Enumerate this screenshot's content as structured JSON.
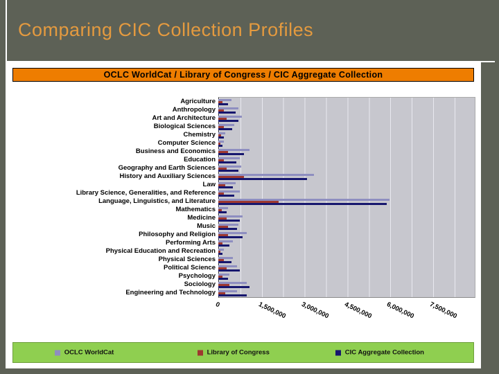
{
  "slide": {
    "title": "Comparing CIC Collection Profiles"
  },
  "chart_data": {
    "type": "bar",
    "orientation": "horizontal",
    "title": "OCLC WorldCat / Library of Congress / CIC Aggregate Collection",
    "xlim": [
      0,
      9000000
    ],
    "grid_step": 750000,
    "legend_position": "bottom",
    "x_ticks": [
      {
        "value": 0,
        "label": "0"
      },
      {
        "value": 1500000,
        "label": "1,500,000"
      },
      {
        "value": 3000000,
        "label": "3,000,000"
      },
      {
        "value": 4500000,
        "label": "4,500,000"
      },
      {
        "value": 6000000,
        "label": "6,000,000"
      },
      {
        "value": 7500000,
        "label": "7,500,000"
      }
    ],
    "categories": [
      "Agriculture",
      "Anthropology",
      "Art and Architecture",
      "Biological Sciences",
      "Chemistry",
      "Computer Science",
      "Business and Economics",
      "Education",
      "Geography and Earth Sciences",
      "History and Auxiliary Sciences",
      "Law",
      "Library Science, Generalities, and Reference",
      "Language, Linguistics, and Literature",
      "Mathematics",
      "Medicine",
      "Music",
      "Philosophy and Religion",
      "Performing Arts",
      "Physical Education and Recreation",
      "Physical Sciences",
      "Political Science",
      "Psychology",
      "Sociology",
      "Engineering and Technology"
    ],
    "series": [
      {
        "name": "OCLC WorldCat",
        "key": "oclc-worldcat",
        "color": "#8e8ec0",
        "values": [
          450000,
          700000,
          825000,
          550000,
          250000,
          200000,
          1100000,
          750000,
          800000,
          3350000,
          600000,
          750000,
          6000000,
          350000,
          850000,
          700000,
          1000000,
          500000,
          200000,
          500000,
          650000,
          400000,
          1000000,
          650000
        ]
      },
      {
        "name": "Library of Congress",
        "key": "library-of-congress",
        "color": "#9e382f",
        "values": [
          150000,
          200000,
          300000,
          200000,
          100000,
          75000,
          350000,
          200000,
          300000,
          900000,
          250000,
          200000,
          2100000,
          125000,
          300000,
          350000,
          350000,
          150000,
          75000,
          200000,
          300000,
          150000,
          400000,
          250000
        ]
      },
      {
        "name": "CIC Aggregate Collection",
        "key": "cic-aggregate",
        "color": "#16166e",
        "values": [
          350000,
          600000,
          700000,
          475000,
          200000,
          150000,
          900000,
          625000,
          700000,
          3100000,
          500000,
          550000,
          5900000,
          300000,
          750000,
          650000,
          850000,
          400000,
          150000,
          450000,
          750000,
          350000,
          1100000,
          1000000
        ]
      }
    ]
  }
}
